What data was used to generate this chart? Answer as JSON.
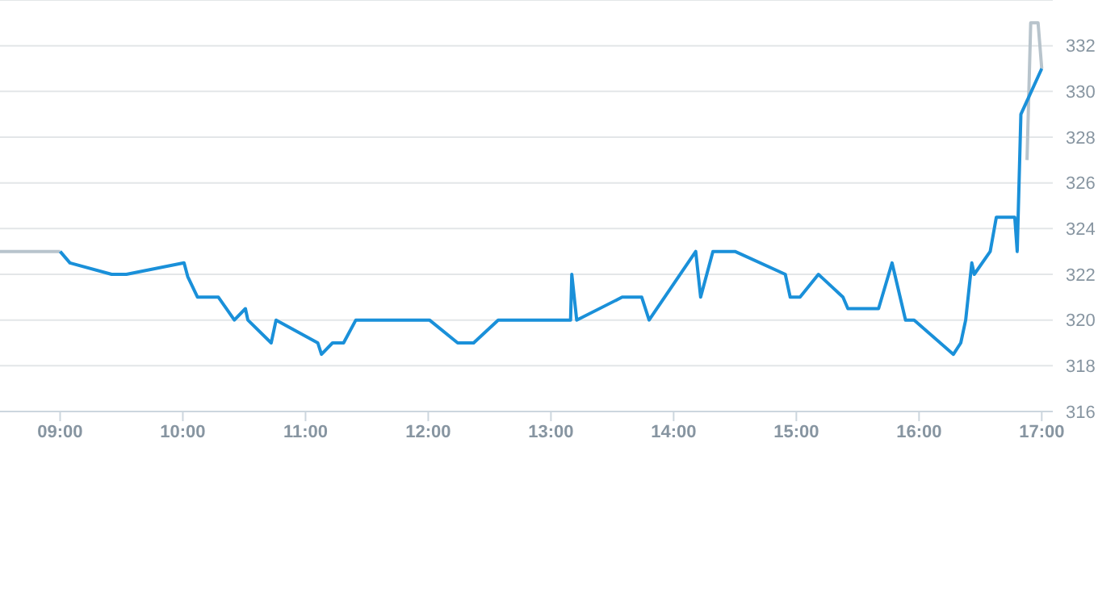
{
  "chart_data": {
    "type": "line",
    "xlim": [
      8.51,
      17.09
    ],
    "xticks": [
      {
        "value": 9,
        "label": "09:00"
      },
      {
        "value": 10,
        "label": "10:00"
      },
      {
        "value": 11,
        "label": "11:00"
      },
      {
        "value": 12,
        "label": "12:00"
      },
      {
        "value": 13,
        "label": "13:00"
      },
      {
        "value": 14,
        "label": "14:00"
      },
      {
        "value": 15,
        "label": "15:00"
      },
      {
        "value": 16,
        "label": "16:00"
      },
      {
        "value": 17,
        "label": "17:00"
      }
    ],
    "ylim": [
      316,
      334
    ],
    "yticks": [
      316,
      318,
      320,
      322,
      324,
      326,
      328,
      330,
      332
    ],
    "grid": "y",
    "marker": "none",
    "line_style": "solid",
    "series": [
      {
        "color": "#b8c4cc",
        "x": [
          8.51,
          9.0
        ],
        "values": [
          323,
          323
        ]
      },
      {
        "color": "#b8c4cc",
        "x": [
          16.88,
          16.91,
          16.97,
          17.0
        ],
        "values": [
          327,
          333,
          333,
          331
        ]
      },
      {
        "color": "#1a90d9",
        "x": [
          9.0,
          9.08,
          9.42,
          9.54,
          10.01,
          10.04,
          10.12,
          10.29,
          10.42,
          10.51,
          10.53,
          10.72,
          10.76,
          11.1,
          11.13,
          11.22,
          11.31,
          11.41,
          12.01,
          12.24,
          12.37,
          12.57,
          13.16,
          13.17,
          13.21,
          13.58,
          13.74,
          13.8,
          14.18,
          14.22,
          14.32,
          14.5,
          14.91,
          14.95,
          15.03,
          15.18,
          15.38,
          15.42,
          15.67,
          15.78,
          15.89,
          15.96,
          16.28,
          16.34,
          16.38,
          16.43,
          16.45,
          16.58,
          16.63,
          16.78,
          16.8,
          16.83,
          17.0
        ],
        "values": [
          323,
          322.5,
          322,
          322,
          322.5,
          321.9,
          321,
          321,
          320,
          320.5,
          320,
          319,
          320,
          319,
          318.5,
          319,
          319,
          320,
          320,
          319,
          319,
          320,
          320,
          322,
          320,
          321,
          321,
          320,
          323,
          321,
          323,
          323,
          322,
          321,
          321,
          322,
          321,
          320.5,
          320.5,
          322.5,
          320,
          320,
          318.5,
          319,
          320,
          322.5,
          322,
          323,
          324.5,
          324.5,
          323,
          329,
          331
        ]
      }
    ]
  }
}
